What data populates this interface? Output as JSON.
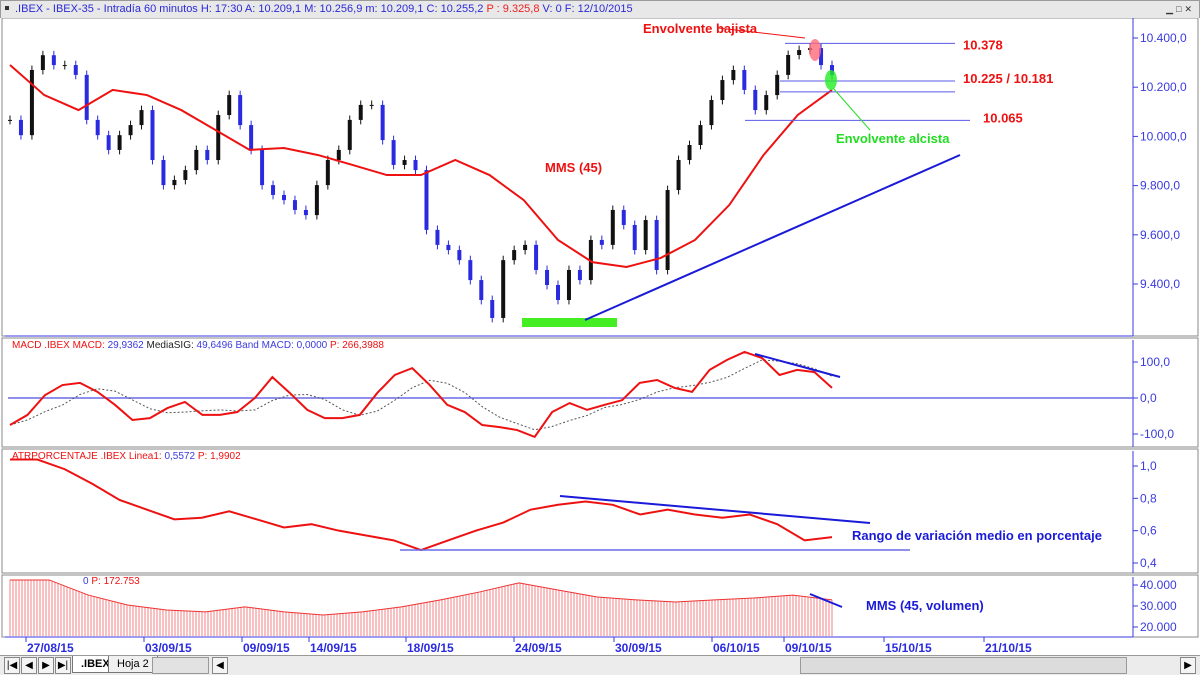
{
  "title": {
    "prefix": ".IBEX - IBEX-35 - Intradía 60 minutos H: 17:30 A: 10.209,1 M: 10.256,9 m: 10.209,1 C: 10.255,2",
    "p_value": "P : 9.325,8",
    "suffix": "V: 0 F: 12/10/2015"
  },
  "tabs": {
    "active": ".IBEX",
    "second": "Hoja 2"
  },
  "colors": {
    "price_up": "#111111",
    "price_down": "#2a2ae0",
    "mms": "#ee1111",
    "axis": "#3a3ae0",
    "green": "#44ee22"
  },
  "chart_data": [
    {
      "type": "candlestick",
      "pane": "price",
      "title": "IBEX-35 Intradía 60 minutos",
      "ylim": [
        9250,
        10450
      ],
      "y_ticks": [
        "10.400,0",
        "10.200,0",
        "10.000,0",
        "9.800,0",
        "9.600,0",
        "9.400,0"
      ],
      "y_tick_values": [
        10400,
        10200,
        10000,
        9800,
        9600,
        9400
      ],
      "closes": [
        10067,
        10005,
        10270,
        10330,
        10290,
        10290,
        10250,
        10067,
        10005,
        9945,
        10005,
        10046,
        10107,
        9904,
        9802,
        9823,
        9863,
        9945,
        9904,
        10087,
        10168,
        10046,
        9945,
        9802,
        9762,
        9741,
        9701,
        9680,
        9802,
        9904,
        9945,
        10067,
        10128,
        10128,
        9985,
        9884,
        9904,
        9863,
        9620,
        9559,
        9538,
        9497,
        9416,
        9335,
        9262,
        9497,
        9538,
        9559,
        9457,
        9396,
        9335,
        9457,
        9416,
        9579,
        9559,
        9701,
        9640,
        9538,
        9660,
        9457,
        9782,
        9904,
        9965,
        10046,
        10148,
        10229,
        10270,
        10189,
        10107,
        10168,
        10250,
        10331,
        10351,
        10359,
        10290,
        10250
      ],
      "mms45": [
        10290,
        10168,
        10107,
        10189,
        10168,
        10107,
        10026,
        9945,
        9953,
        9924,
        9884,
        9843,
        9843,
        9904,
        9843,
        9741,
        9579,
        9489,
        9469,
        9506,
        9579,
        9721,
        9924,
        10087,
        10189
      ],
      "levels": [
        {
          "label": "10.378",
          "value": 10378
        },
        {
          "label": "10.225 / 10.181",
          "value": 10225,
          "value2": 10181
        },
        {
          "label": "10.065",
          "value": 10065
        }
      ],
      "annotations": {
        "bearish": "Envolvente bajista",
        "bullish": "Envolvente alcista",
        "mms": "MMS (45)"
      }
    },
    {
      "type": "line",
      "pane": "macd",
      "legend": {
        "name": "MACD  .IBEX MACD:",
        "macd": "29,9362",
        "sig_label": "MediaSIG:",
        "sig": "49,6496",
        "band_label": "Band  MACD: 0,0000",
        "p": "P: 266,3988"
      },
      "ylim": [
        -110,
        140
      ],
      "y_ticks": [
        "100,0",
        "0,0",
        "-100,0"
      ],
      "y_tick_values": [
        100,
        0,
        -100
      ],
      "macd": [
        -75,
        -47,
        8,
        36,
        42,
        17,
        -19,
        -61,
        -56,
        -28,
        -11,
        -47,
        -47,
        -39,
        0,
        58,
        14,
        -33,
        -56,
        -56,
        -47,
        14,
        64,
        83,
        36,
        -19,
        -39,
        -75,
        -81,
        -89,
        -108,
        -39,
        -14,
        -33,
        -19,
        -6,
        42,
        50,
        28,
        17,
        78,
        106,
        128,
        111,
        64,
        78,
        72,
        28
      ],
      "band": 0
    },
    {
      "type": "line",
      "pane": "atr",
      "legend": {
        "name": "ATRPORCENTAJE  .IBEX Linea1:",
        "value": "0,5572",
        "p": "P: 1,9902"
      },
      "ylim": [
        0.38,
        1.05
      ],
      "y_ticks": [
        "1,0",
        "0,8",
        "0,6",
        "0,4"
      ],
      "y_tick_values": [
        1.0,
        0.8,
        0.6,
        0.4
      ],
      "values": [
        1.04,
        1.04,
        0.98,
        0.89,
        0.79,
        0.73,
        0.67,
        0.68,
        0.72,
        0.67,
        0.62,
        0.64,
        0.6,
        0.57,
        0.54,
        0.48,
        0.54,
        0.6,
        0.65,
        0.73,
        0.76,
        0.78,
        0.76,
        0.7,
        0.73,
        0.7,
        0.68,
        0.7,
        0.64,
        0.54,
        0.56
      ],
      "annotation": "Rango de variación medio en porcentaje"
    },
    {
      "type": "bar",
      "pane": "volume",
      "legend": {
        "zero": "0",
        "p": "P: 172.753"
      },
      "ylim": [
        15000,
        43000
      ],
      "y_ticks": [
        "40.000",
        "30.000",
        "20.000"
      ],
      "y_tick_values": [
        40000,
        30000,
        20000
      ],
      "mms45_volume": [
        42400,
        42400,
        35200,
        30500,
        28100,
        27200,
        29600,
        27200,
        25700,
        27200,
        29600,
        32900,
        36700,
        41000,
        37600,
        34300,
        32900,
        31900,
        32900,
        33800,
        35200,
        32900
      ],
      "annotation": "MMS (45, volumen)"
    }
  ],
  "x_axis": {
    "labels": [
      "27/08/15",
      "03/09/15",
      "09/09/15",
      "14/09/15",
      "18/09/15",
      "24/09/15",
      "30/09/15",
      "06/10/15",
      "09/10/15",
      "15/10/15",
      "21/10/15"
    ]
  }
}
